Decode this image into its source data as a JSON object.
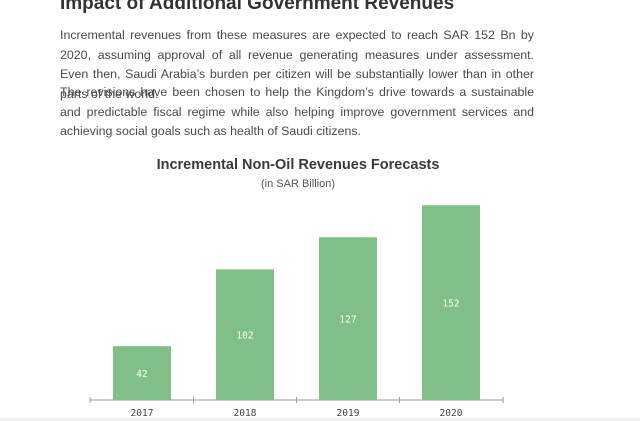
{
  "heading": "Impact of Additional Government Revenues",
  "paragraphs": [
    "Incremental revenues from these measures are expected to reach SAR 152 Bn by 2020, assuming approval of all revenue generating measures under assessment. Even then, Saudi Arabia’s burden per citizen will be substantially lower than in other parts of the world.",
    "The revisions have been chosen to help the Kingdom’s drive towards a sustainable and predictable fiscal regime while also helping improve government services and achieving social goals such as health of Saudi citizens."
  ],
  "colors": {
    "bar": "#80c088",
    "axis": "#9a9a9a",
    "label": "#ffffff"
  },
  "chart_data": {
    "type": "bar",
    "title": "Incremental Non-Oil Revenues Forecasts",
    "subtitle": "(in SAR Billion)",
    "categories": [
      "2017",
      "2018",
      "2019",
      "2020"
    ],
    "values": [
      42,
      102,
      127,
      152
    ],
    "data_labels": [
      "42",
      "102",
      "127",
      "152"
    ],
    "ylim": [
      0,
      160
    ]
  }
}
